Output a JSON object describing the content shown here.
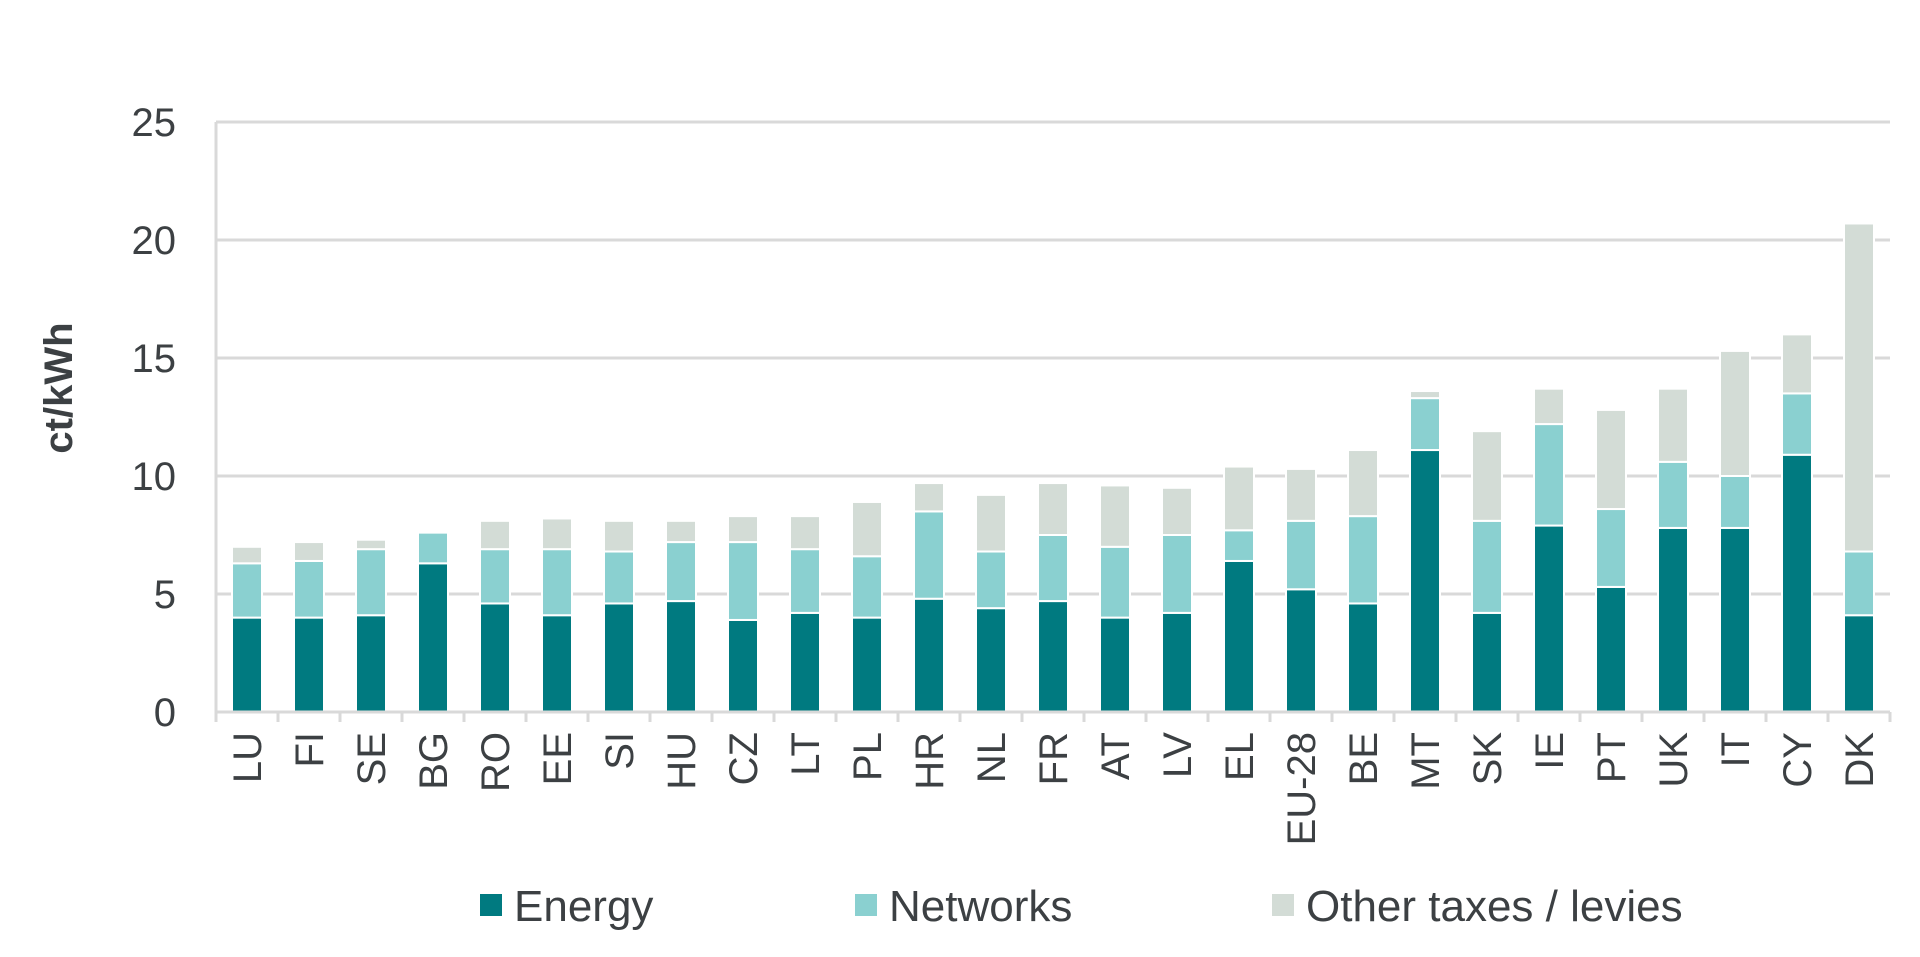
{
  "chart_data": {
    "type": "bar",
    "stacked": true,
    "title": "",
    "xlabel": "",
    "ylabel": "ct/kWh",
    "ylim": [
      0,
      25
    ],
    "yticks": [
      0,
      5,
      10,
      15,
      20,
      25
    ],
    "grid": true,
    "legend_position": "bottom",
    "categories": [
      "LU",
      "FI",
      "SE",
      "BG",
      "RO",
      "EE",
      "SI",
      "HU",
      "CZ",
      "LT",
      "PL",
      "HR",
      "NL",
      "FR",
      "AT",
      "LV",
      "EL",
      "EU-28",
      "BE",
      "MT",
      "SK",
      "IE",
      "PT",
      "UK",
      "IT",
      "CY",
      "DK"
    ],
    "series": [
      {
        "name": "Energy",
        "color": "#007a80",
        "values": [
          4.0,
          4.0,
          4.1,
          6.3,
          4.6,
          4.1,
          4.6,
          4.7,
          3.9,
          4.2,
          4.0,
          4.8,
          4.4,
          4.7,
          4.0,
          4.2,
          6.4,
          5.2,
          4.6,
          11.1,
          4.2,
          7.9,
          5.3,
          7.8,
          7.8,
          10.9,
          4.1
        ]
      },
      {
        "name": "Networks",
        "color": "#8ad0d0",
        "values": [
          2.3,
          2.4,
          2.8,
          1.3,
          2.3,
          2.8,
          2.2,
          2.5,
          3.3,
          2.7,
          2.6,
          3.7,
          2.4,
          2.8,
          3.0,
          3.3,
          1.3,
          2.9,
          3.7,
          2.2,
          3.9,
          4.3,
          3.3,
          2.8,
          2.2,
          2.6,
          2.7
        ]
      },
      {
        "name": "Other taxes / levies",
        "color": "#d3dcd6",
        "values": [
          0.7,
          0.8,
          0.4,
          0.0,
          1.2,
          1.3,
          1.3,
          0.9,
          1.1,
          1.4,
          2.3,
          1.2,
          2.4,
          2.2,
          2.6,
          2.0,
          2.7,
          2.2,
          2.8,
          0.3,
          3.8,
          1.5,
          4.2,
          3.1,
          5.3,
          2.5,
          13.9
        ]
      }
    ]
  }
}
